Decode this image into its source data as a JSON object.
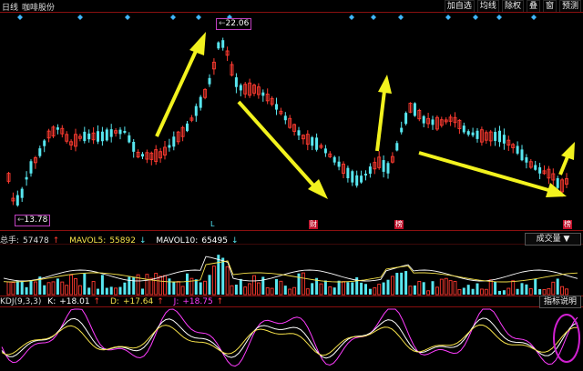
{
  "header": {
    "period": "日线",
    "stock_name": "咖啡股份",
    "toolbar": [
      "加自选",
      "均线",
      "除权",
      "叠",
      "窗",
      "预测"
    ]
  },
  "price_labels": {
    "high": "22.06",
    "low": "13.78"
  },
  "event_marks": [
    "L",
    "财",
    "榜",
    "榜"
  ],
  "volume_panel": {
    "total": {
      "label": "总手:",
      "value": "57478"
    },
    "mavol5": {
      "label": "MAVOL5:",
      "value": "55892"
    },
    "mavol10": {
      "label": "MAVOL10:",
      "value": "65495"
    },
    "select_label": "成交量",
    "select_arrow": "▼"
  },
  "kdj_panel": {
    "title": "KDJ(9,3,3)",
    "k": {
      "label": "K:",
      "value": "+18.01"
    },
    "d": {
      "label": "D:",
      "value": "+17.64"
    },
    "j": {
      "label": "J:",
      "value": "+18.75"
    },
    "help_button": "指标说明"
  },
  "colors": {
    "up": "#ff3b30",
    "down": "#58e6ef",
    "ma5": "#ffffff",
    "ma10": "#f5e14a",
    "k": "#ffffff",
    "d": "#f5e14a",
    "j": "#ff3cff",
    "arrow": "#f2f21e",
    "circle": "#d020d0"
  },
  "icons": {
    "up_arrow": "↑",
    "down_arrow": "↓"
  }
}
